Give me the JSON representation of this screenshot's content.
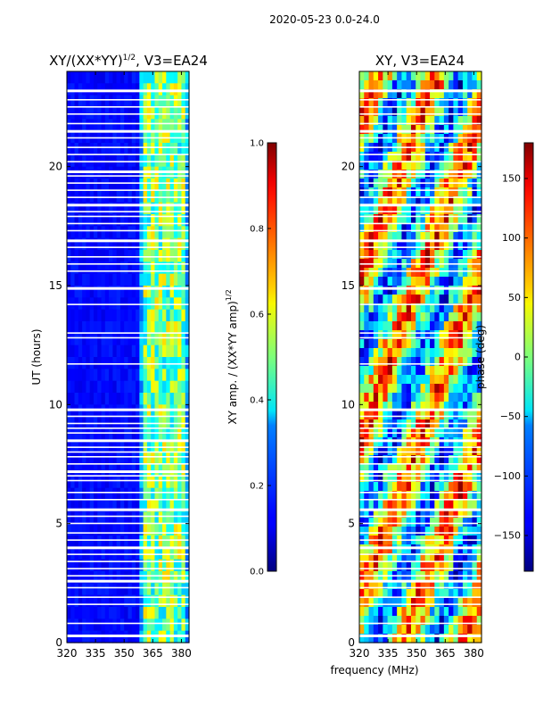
{
  "figure": {
    "suptitle": "2020-05-23 0.0-24.0",
    "shared_xlabel": "frequency (MHz)"
  },
  "chart_data": [
    {
      "type": "heatmap",
      "title_main": "XY/(XX*YY)",
      "title_sup": "1/2",
      "title_suffix": ", V3=EA24",
      "ylabel": "UT (hours)",
      "xlim": [
        320,
        384
      ],
      "ylim": [
        0,
        24
      ],
      "x_ticks": [
        320,
        335,
        350,
        365,
        380
      ],
      "y_ticks": [
        0,
        5,
        10,
        15,
        20
      ],
      "bright_channels_mhz": [
        362,
        364,
        366,
        368,
        371,
        373,
        375,
        378,
        380
      ],
      "flagged_ut_gaps": [
        0.3,
        0.8,
        1.6,
        1.9,
        2.3,
        2.6,
        2.8,
        3.1,
        3.4,
        3.7,
        4.0,
        4.3,
        4.6,
        5.0,
        5.3,
        5.6,
        6.0,
        6.3,
        6.8,
        7.0,
        7.2,
        7.5,
        7.8,
        8.0,
        8.2,
        8.5,
        8.8,
        9.0,
        9.2,
        9.5,
        9.8,
        11.7,
        12.8,
        13.0,
        14.2,
        14.9,
        15.6,
        15.9,
        16.2,
        16.6,
        16.9,
        17.3,
        17.6,
        17.9,
        18.1,
        18.4,
        18.7,
        19.0,
        19.3,
        19.6,
        19.8,
        20.2,
        20.5,
        20.8,
        21.2,
        21.5,
        21.8,
        22.2,
        22.5,
        22.8,
        23.2
      ]
    },
    {
      "type": "colorbar",
      "label_main": "XY amp. / (XX*YY amp)",
      "label_sup": "1/2",
      "range": [
        0.0,
        1.0
      ],
      "tick_values": [
        0.0,
        0.2,
        0.4,
        0.6,
        0.8,
        1.0
      ],
      "tick_labels": [
        "0.0",
        "0.2",
        "0.4",
        "0.6",
        "0.8",
        "1.0"
      ],
      "colormap": "jet"
    },
    {
      "type": "heatmap",
      "title": "XY, V3=EA24",
      "xlim": [
        320,
        384
      ],
      "ylim": [
        0,
        24
      ],
      "x_ticks": [
        320,
        335,
        350,
        365,
        380
      ],
      "y_ticks": [
        0,
        5,
        10,
        15,
        20
      ],
      "flagged_ut_gaps": [
        0.3,
        0.8,
        1.6,
        1.9,
        2.3,
        2.6,
        2.8,
        3.1,
        3.4,
        3.7,
        4.0,
        4.3,
        4.6,
        5.0,
        5.3,
        5.6,
        6.0,
        6.3,
        6.8,
        7.0,
        7.2,
        7.5,
        7.8,
        8.0,
        8.2,
        8.5,
        8.8,
        9.0,
        9.2,
        9.5,
        9.8,
        11.7,
        12.8,
        13.0,
        14.2,
        14.9,
        15.6,
        15.9,
        16.2,
        16.6,
        16.9,
        17.3,
        17.6,
        17.9,
        18.1,
        18.4,
        18.7,
        19.0,
        19.3,
        19.6,
        19.8,
        20.2,
        20.5,
        20.8,
        21.2,
        21.5,
        21.8,
        22.2,
        22.5,
        22.8,
        23.2
      ]
    },
    {
      "type": "colorbar",
      "label": "phase (deg)",
      "range": [
        -180,
        180
      ],
      "tick_values": [
        -150,
        -100,
        -50,
        0,
        50,
        100,
        150
      ],
      "tick_labels": [
        "−150",
        "−100",
        "−50",
        "0",
        "50",
        "100",
        "150"
      ],
      "colormap": "jet"
    }
  ]
}
